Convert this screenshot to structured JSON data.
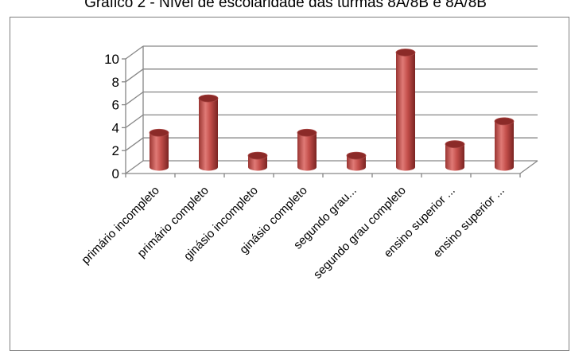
{
  "chart_data": {
    "type": "bar",
    "title": "Gráfico 2 - Nível de escolaridade das turmas 8A/8B e 8A/8B",
    "categories": [
      "primário incompleto",
      "primário completo",
      "ginásio incompleto",
      "ginásio completo",
      "segundo grau...",
      "segundo grau completo",
      "ensino superior ...",
      "ensino superior ..."
    ],
    "values": [
      3,
      6,
      1,
      3,
      1,
      10,
      2,
      4
    ],
    "ylim": [
      0,
      10
    ],
    "yticks": [
      "0",
      "2",
      "4",
      "6",
      "8",
      "10"
    ],
    "grid": true,
    "legend": "none",
    "style": "3d-cylinder",
    "colors": {
      "bar": "#c0504d",
      "bar_dark": "#8b2a28",
      "bar_light": "#e88a86",
      "grid": "#868686"
    }
  }
}
